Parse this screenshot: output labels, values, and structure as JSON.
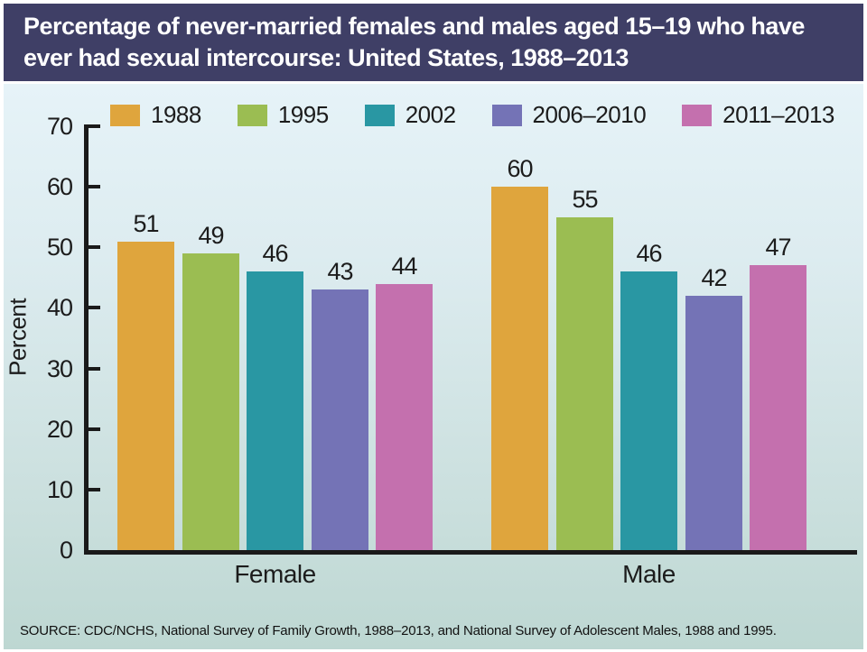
{
  "title": {
    "lines": [
      "Percentage of never-married females and males aged 15–19 who have",
      "ever had sexual intercourse: United States, 1988–2013"
    ]
  },
  "chart_data": {
    "type": "bar",
    "title": "Percentage of never-married females and males aged 15–19 who have ever had sexual intercourse: United States, 1988–2013",
    "categories": [
      "Female",
      "Male"
    ],
    "series": [
      {
        "name": "1988",
        "color": "#dfa53d",
        "values": [
          51,
          60
        ]
      },
      {
        "name": "1995",
        "color": "#9bbd52",
        "values": [
          49,
          55
        ]
      },
      {
        "name": "2002",
        "color": "#2997a3",
        "values": [
          46,
          46
        ]
      },
      {
        "name": "2006–2010",
        "color": "#7473b6",
        "values": [
          43,
          42
        ]
      },
      {
        "name": "2011–2013",
        "color": "#c470ae",
        "values": [
          44,
          47
        ]
      }
    ],
    "xlabel": "",
    "ylabel": "Percent",
    "ylim": [
      0,
      70
    ],
    "yticks": [
      0,
      10,
      20,
      30,
      40,
      50,
      60,
      70
    ],
    "grid": false,
    "legend_position": "top",
    "value_labels_shown": true
  },
  "source": {
    "text": "SOURCE: CDC/NCHS, National Survey of Family Growth, 1988–2013, and National Survey of Adolescent Males, 1988 and 1995."
  },
  "colors": {
    "title_bar": "#3f3f66",
    "title_text": "#ffffff",
    "background_top": "#e6f3f8",
    "background_bottom": "#bdd7d2",
    "axis": "#1a1a1a"
  }
}
